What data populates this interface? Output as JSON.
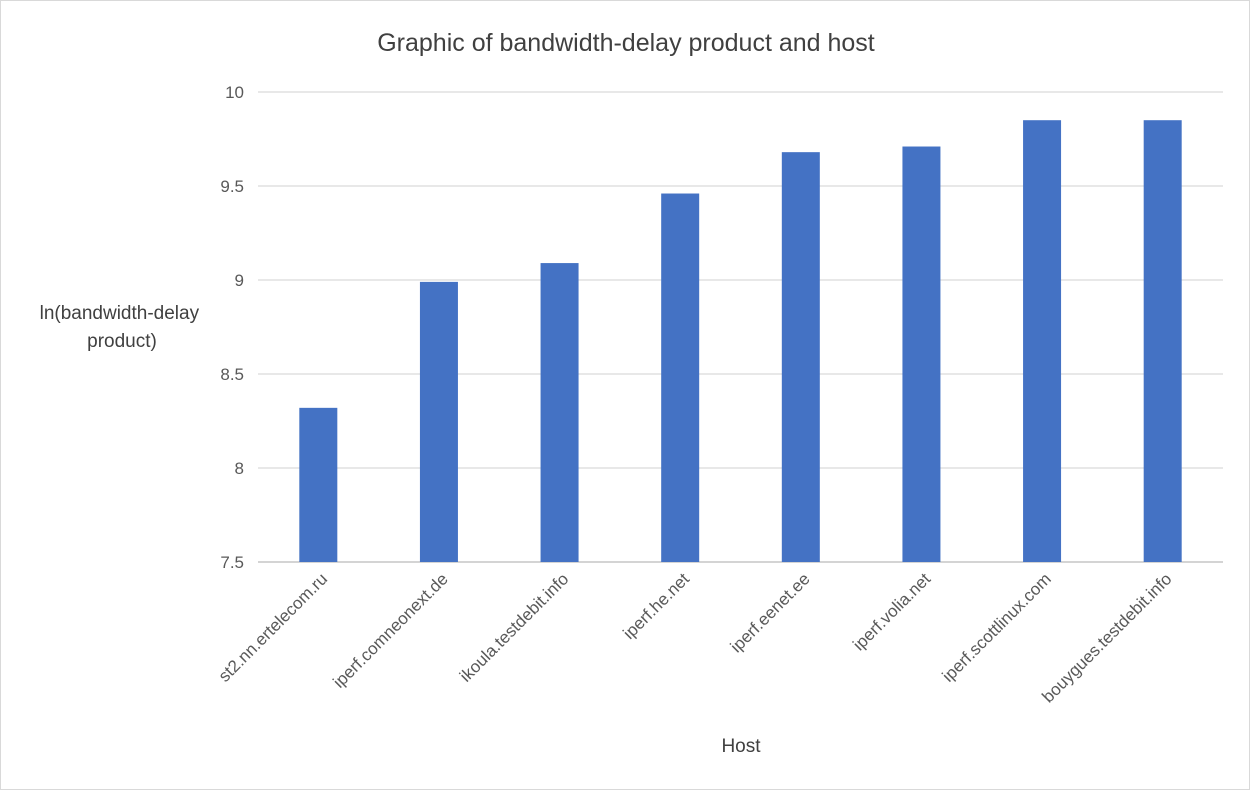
{
  "chart_data": {
    "type": "bar",
    "title": "Graphic of bandwidth-delay product and host",
    "xlabel": "Host",
    "ylabel": [
      "ln(bandwidth-delay",
      "product)"
    ],
    "categories": [
      "st2.nn.ertelecom.ru",
      "iperf.comneonext.de",
      "ikoula.testdebit.info",
      "iperf.he.net",
      "iperf.eenet.ee",
      "iperf.volia.net",
      "iperf.scottlinux.com",
      "bouygues.testdebit.info"
    ],
    "values": [
      8.32,
      8.99,
      9.09,
      9.46,
      9.68,
      9.71,
      9.85,
      9.85
    ],
    "ylim": [
      7.5,
      10
    ],
    "yticks": [
      "7.5",
      "8",
      "8.5",
      "9",
      "9.5",
      "10"
    ],
    "grid": true,
    "bar_color": "#4472c4",
    "grid_color": "#d9d9d9"
  }
}
